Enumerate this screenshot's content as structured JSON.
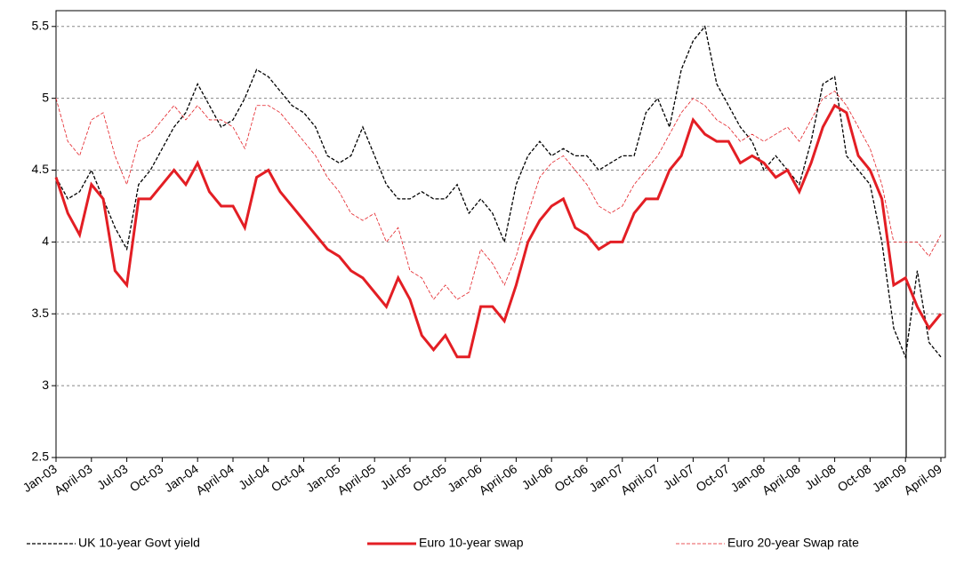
{
  "chart_data": {
    "type": "line",
    "categories": [
      "Jan-03",
      null,
      null,
      "April-03",
      null,
      null,
      "Jul-03",
      null,
      null,
      "Oct-03",
      null,
      null,
      "Jan-04",
      null,
      null,
      "April-04",
      null,
      null,
      "Jul-04",
      null,
      null,
      "Oct-04",
      null,
      null,
      "Jan-05",
      null,
      null,
      "April-05",
      null,
      null,
      "Jul-05",
      null,
      null,
      "Oct-05",
      null,
      null,
      "Jan-06",
      null,
      null,
      "April-06",
      null,
      null,
      "Jul-06",
      null,
      null,
      "Oct-06",
      null,
      null,
      "Jan-07",
      null,
      null,
      "April-07",
      null,
      null,
      "Jul-07",
      null,
      null,
      "Oct-07",
      null,
      null,
      "Jan-08",
      null,
      null,
      "April-08",
      null,
      null,
      "Jul-08",
      null,
      null,
      "Oct-08",
      null,
      null,
      "Jan-09",
      null,
      null,
      "April-09"
    ],
    "series": [
      {
        "name": "UK 10-year Govt yield",
        "color": "#000000",
        "style": "dashed",
        "width": 1.3,
        "values": [
          4.45,
          4.3,
          4.35,
          4.5,
          4.3,
          4.1,
          3.95,
          4.4,
          4.5,
          4.65,
          4.8,
          4.9,
          5.1,
          4.95,
          4.8,
          4.85,
          5.0,
          5.2,
          5.15,
          5.05,
          4.95,
          4.9,
          4.8,
          4.6,
          4.55,
          4.6,
          4.8,
          4.6,
          4.4,
          4.3,
          4.3,
          4.35,
          4.3,
          4.3,
          4.4,
          4.2,
          4.3,
          4.2,
          4.0,
          4.4,
          4.6,
          4.7,
          4.6,
          4.65,
          4.6,
          4.6,
          4.5,
          4.55,
          4.6,
          4.6,
          4.9,
          5.0,
          4.8,
          5.2,
          5.4,
          5.5,
          5.1,
          4.95,
          4.8,
          4.7,
          4.5,
          4.6,
          4.5,
          4.4,
          4.7,
          5.1,
          5.15,
          4.6,
          4.5,
          4.4,
          4.0,
          3.4,
          3.2,
          3.8,
          3.3,
          3.2
        ]
      },
      {
        "name": "Euro 10-year swap",
        "color": "#e31e24",
        "style": "solid",
        "width": 3,
        "values": [
          4.45,
          4.2,
          4.05,
          4.4,
          4.3,
          3.8,
          3.7,
          4.3,
          4.3,
          4.4,
          4.5,
          4.4,
          4.55,
          4.35,
          4.25,
          4.25,
          4.1,
          4.45,
          4.5,
          4.35,
          4.25,
          4.15,
          4.05,
          3.95,
          3.9,
          3.8,
          3.75,
          3.65,
          3.55,
          3.75,
          3.6,
          3.35,
          3.25,
          3.35,
          3.2,
          3.2,
          3.55,
          3.55,
          3.45,
          3.7,
          4.0,
          4.15,
          4.25,
          4.3,
          4.1,
          4.05,
          3.95,
          4.0,
          4.0,
          4.2,
          4.3,
          4.3,
          4.5,
          4.6,
          4.85,
          4.75,
          4.7,
          4.7,
          4.55,
          4.6,
          4.55,
          4.45,
          4.5,
          4.35,
          4.55,
          4.8,
          4.95,
          4.9,
          4.6,
          4.5,
          4.3,
          3.7,
          3.75,
          3.55,
          3.4,
          3.5
        ]
      },
      {
        "name": "Euro 20-year Swap rate",
        "color": "#e31e24",
        "style": "dashed",
        "width": 0.8,
        "values": [
          5.0,
          4.7,
          4.6,
          4.85,
          4.9,
          4.6,
          4.4,
          4.7,
          4.75,
          4.85,
          4.95,
          4.85,
          4.95,
          4.85,
          4.85,
          4.8,
          4.65,
          4.95,
          4.95,
          4.9,
          4.8,
          4.7,
          4.6,
          4.45,
          4.35,
          4.2,
          4.15,
          4.2,
          4.0,
          4.1,
          3.8,
          3.75,
          3.6,
          3.7,
          3.6,
          3.65,
          3.95,
          3.85,
          3.7,
          3.9,
          4.2,
          4.45,
          4.55,
          4.6,
          4.5,
          4.4,
          4.25,
          4.2,
          4.25,
          4.4,
          4.5,
          4.6,
          4.75,
          4.9,
          5.0,
          4.95,
          4.85,
          4.8,
          4.7,
          4.75,
          4.7,
          4.75,
          4.8,
          4.7,
          4.85,
          5.0,
          5.05,
          4.95,
          4.8,
          4.65,
          4.4,
          4.0,
          4.0,
          4.0,
          3.9,
          4.05
        ]
      }
    ],
    "ylim": [
      2.5,
      5.61
    ],
    "yticks": [
      2.5,
      3,
      3.5,
      4,
      4.5,
      5,
      5.5
    ],
    "grid": true
  }
}
